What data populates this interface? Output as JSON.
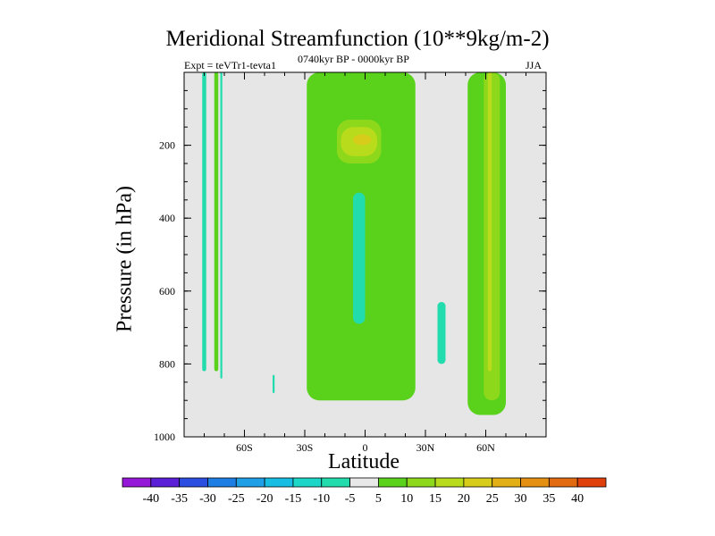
{
  "chart_data": {
    "type": "heatmap",
    "title": "Meridional Streamfunction (10**9kg/m-2)",
    "experiment_label": "Expt = teVTr1-tevta1",
    "period_label": "0740kyr BP - 0000kyr BP",
    "season_label": "JJA",
    "xlabel": "Latitude",
    "ylabel": "Pressure (in hPa)",
    "xlim": [
      -90,
      90
    ],
    "ylim": [
      1000,
      0
    ],
    "xticks": [
      {
        "value": -60,
        "label": "60S"
      },
      {
        "value": -30,
        "label": "30S"
      },
      {
        "value": 0,
        "label": "0"
      },
      {
        "value": 30,
        "label": "30N"
      },
      {
        "value": 60,
        "label": "60N"
      }
    ],
    "yticks": [
      {
        "value": 200,
        "label": "200"
      },
      {
        "value": 400,
        "label": "400"
      },
      {
        "value": 600,
        "label": "600"
      },
      {
        "value": 800,
        "label": "800"
      },
      {
        "value": 1000,
        "label": "1000"
      }
    ],
    "colorbar": {
      "labels": [
        "-40",
        "-35",
        "-30",
        "-25",
        "-20",
        "-15",
        "-10",
        "-5",
        "5",
        "10",
        "15",
        "20",
        "25",
        "30",
        "35",
        "40"
      ],
      "colors": [
        "#9518d8",
        "#5a1fd6",
        "#2b4ee0",
        "#1f7ee4",
        "#1e9fe6",
        "#18bde4",
        "#1cd6c8",
        "#22dcae",
        "#e8e8e8",
        "#5ad21c",
        "#8ed81c",
        "#b8dc1c",
        "#d8cc1a",
        "#e2b016",
        "#e49012",
        "#e26a10",
        "#e0400c"
      ]
    },
    "background_color": "#e6e6e6",
    "regions": [
      {
        "class": "-10..-5",
        "color": "#22dcae",
        "lat_range": [
          -81,
          -79
        ],
        "p_range": [
          0,
          820
        ]
      },
      {
        "class": "5..10",
        "color": "#5ad21c",
        "lat_range": [
          -75,
          -73
        ],
        "p_range": [
          0,
          820
        ]
      },
      {
        "class": "-10..-5",
        "color": "#22dcae",
        "lat_range": [
          -72,
          -71
        ],
        "p_range": [
          0,
          840
        ]
      },
      {
        "class": "-10..-5",
        "color": "#22dcae",
        "lat_range": [
          -46,
          -45
        ],
        "p_range": [
          830,
          880
        ]
      },
      {
        "class": "5..10",
        "color": "#5ad21c",
        "lat_range": [
          -29,
          25
        ],
        "p_range": [
          0,
          900
        ]
      },
      {
        "class": "10..15",
        "color": "#8ed81c",
        "lat_range": [
          -14,
          8
        ],
        "p_range": [
          130,
          250
        ]
      },
      {
        "class": "15..20",
        "color": "#b8dc1c",
        "lat_range": [
          -12,
          6
        ],
        "p_range": [
          150,
          230
        ]
      },
      {
        "class": "20..25",
        "color": "#d8cc1a",
        "lat_range": [
          -6,
          3
        ],
        "p_range": [
          170,
          200
        ]
      },
      {
        "class": "-10..-5",
        "color": "#22dcae",
        "lat_range": [
          -6,
          0
        ],
        "p_range": [
          330,
          690
        ]
      },
      {
        "class": "-10..-5",
        "color": "#22dcae",
        "lat_range": [
          36,
          40
        ],
        "p_range": [
          630,
          800
        ]
      },
      {
        "class": "5..10",
        "color": "#5ad21c",
        "lat_range": [
          51,
          70
        ],
        "p_range": [
          0,
          940
        ]
      },
      {
        "class": "10..15",
        "color": "#8ed81c",
        "lat_range": [
          59,
          67
        ],
        "p_range": [
          0,
          900
        ]
      },
      {
        "class": "15..20",
        "color": "#b8dc1c",
        "lat_range": [
          61,
          63
        ],
        "p_range": [
          0,
          820
        ]
      }
    ]
  }
}
